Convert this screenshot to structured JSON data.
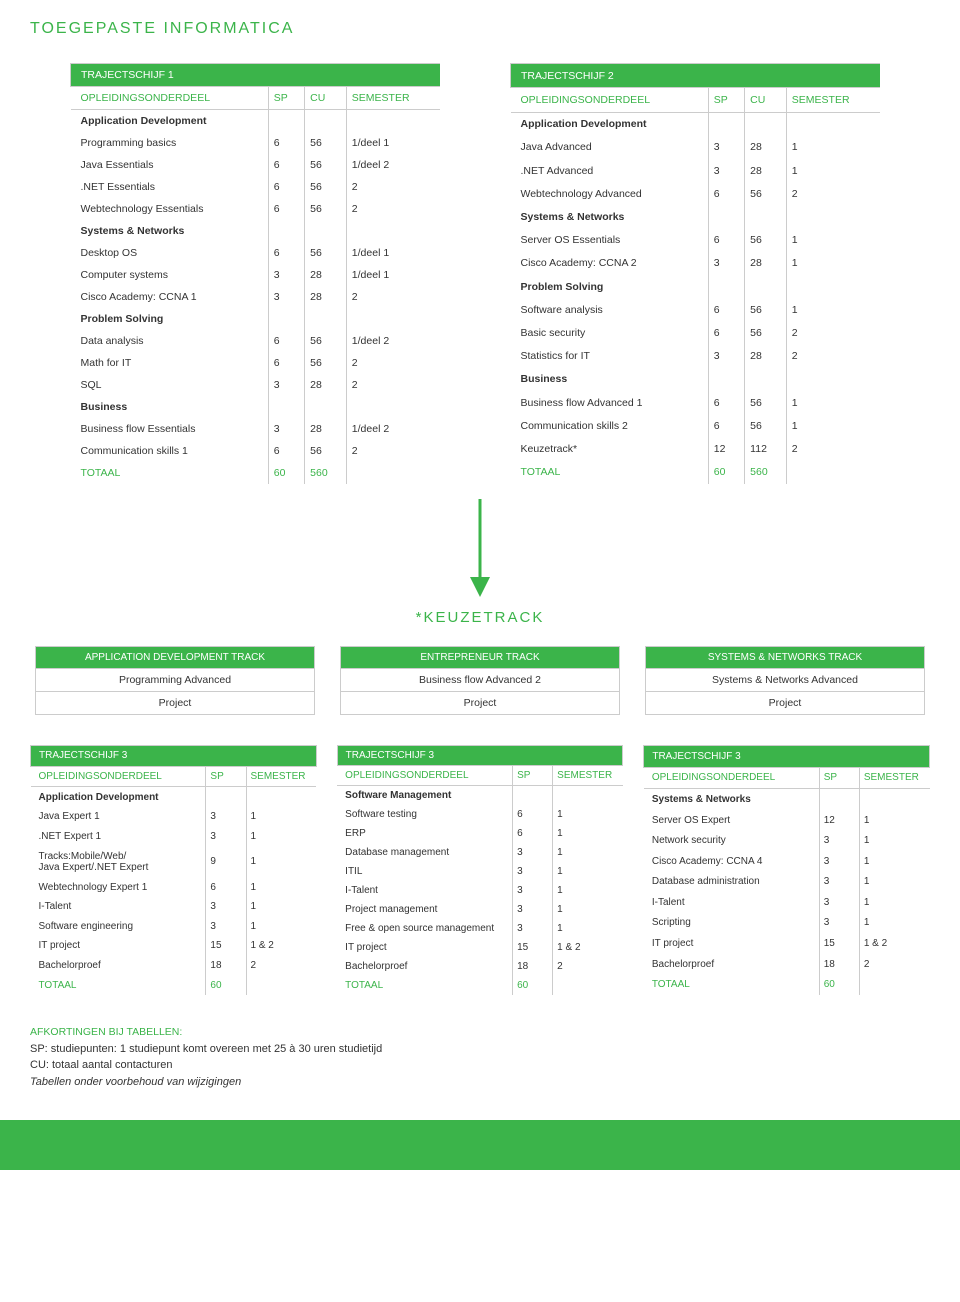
{
  "page_title": "TOEGEPASTE INFORMATICA",
  "colors": {
    "accent": "#3bb44a",
    "border": "#cccccc",
    "text": "#333333",
    "white": "#ffffff"
  },
  "traj1": {
    "title": "TRAJECTSCHIJF 1",
    "headers": {
      "c1": "OPLEIDINGSONDERDEEL",
      "c2": "SP",
      "c3": "CU",
      "c4": "SEMESTER"
    },
    "rows": [
      {
        "type": "section",
        "c1": "Application Development"
      },
      {
        "c1": "Programming basics",
        "c2": "6",
        "c3": "56",
        "c4": "1/deel 1"
      },
      {
        "c1": "Java Essentials",
        "c2": "6",
        "c3": "56",
        "c4": "1/deel 2"
      },
      {
        "c1": ".NET Essentials",
        "c2": "6",
        "c3": "56",
        "c4": "2"
      },
      {
        "c1": "Webtechnology Essentials",
        "c2": "6",
        "c3": "56",
        "c4": "2"
      },
      {
        "type": "section",
        "c1": "Systems & Networks"
      },
      {
        "c1": "Desktop OS",
        "c2": "6",
        "c3": "56",
        "c4": "1/deel 1"
      },
      {
        "c1": "Computer systems",
        "c2": "3",
        "c3": "28",
        "c4": "1/deel 1"
      },
      {
        "c1": "Cisco Academy: CCNA 1",
        "c2": "3",
        "c3": "28",
        "c4": "2"
      },
      {
        "type": "section",
        "c1": "Problem Solving"
      },
      {
        "c1": "Data analysis",
        "c2": "6",
        "c3": "56",
        "c4": "1/deel 2"
      },
      {
        "c1": "Math for IT",
        "c2": "6",
        "c3": "56",
        "c4": "2"
      },
      {
        "c1": "SQL",
        "c2": "3",
        "c3": "28",
        "c4": "2"
      },
      {
        "type": "section",
        "c1": "Business"
      },
      {
        "c1": "Business flow Essentials",
        "c2": "3",
        "c3": "28",
        "c4": "1/deel 2"
      },
      {
        "c1": "Communication skills 1",
        "c2": "6",
        "c3": "56",
        "c4": "2"
      },
      {
        "type": "total",
        "c1": "TOTAAL",
        "c2": "60",
        "c3": "560",
        "c4": ""
      }
    ]
  },
  "traj2": {
    "title": "TRAJECTSCHIJF 2",
    "headers": {
      "c1": "OPLEIDINGSONDERDEEL",
      "c2": "SP",
      "c3": "CU",
      "c4": "SEMESTER"
    },
    "rows": [
      {
        "type": "section",
        "c1": "Application Development"
      },
      {
        "c1": "Java Advanced",
        "c2": "3",
        "c3": "28",
        "c4": "1"
      },
      {
        "c1": ".NET Advanced",
        "c2": "3",
        "c3": "28",
        "c4": "1"
      },
      {
        "c1": "Webtechnology Advanced",
        "c2": "6",
        "c3": "56",
        "c4": "2"
      },
      {
        "type": "section",
        "c1": "Systems & Networks"
      },
      {
        "c1": "Server OS Essentials",
        "c2": "6",
        "c3": "56",
        "c4": "1"
      },
      {
        "c1": "Cisco Academy: CCNA 2",
        "c2": "3",
        "c3": "28",
        "c4": "1"
      },
      {
        "type": "section",
        "c1": "Problem Solving"
      },
      {
        "c1": "Software analysis",
        "c2": "6",
        "c3": "56",
        "c4": "1"
      },
      {
        "c1": "Basic security",
        "c2": "6",
        "c3": "56",
        "c4": "2"
      },
      {
        "c1": "Statistics for IT",
        "c2": "3",
        "c3": "28",
        "c4": "2"
      },
      {
        "type": "section",
        "c1": "Business"
      },
      {
        "c1": "Business flow Advanced 1",
        "c2": "6",
        "c3": "56",
        "c4": "1"
      },
      {
        "c1": "Communication skills 2",
        "c2": "6",
        "c3": "56",
        "c4": "1"
      },
      {
        "c1": "Keuzetrack*",
        "c2": "12",
        "c3": "112",
        "c4": "2"
      },
      {
        "type": "total",
        "c1": "TOTAAL",
        "c2": "60",
        "c3": "560",
        "c4": ""
      }
    ]
  },
  "keuzetrack_title": "*KEUZETRACK",
  "tracks": [
    {
      "header": "APPLICATION DEVELOPMENT TRACK",
      "r1": "Programming Advanced",
      "r2": "Project"
    },
    {
      "header": "ENTREPRENEUR TRACK",
      "r1": "Business flow Advanced 2",
      "r2": "Project"
    },
    {
      "header": "SYSTEMS & NETWORKS TRACK",
      "r1": "Systems & Networks Advanced",
      "r2": "Project"
    }
  ],
  "traj3": [
    {
      "title": "TRAJECTSCHIJF 3",
      "headers": {
        "c1": "OPLEIDINGSONDERDEEL",
        "c2": "SP",
        "c3": "SEMESTER"
      },
      "rows": [
        {
          "type": "section",
          "c1": "Application Development"
        },
        {
          "c1": "Java Expert 1",
          "c2": "3",
          "c3": "1"
        },
        {
          "c1": ".NET Expert 1",
          "c2": "3",
          "c3": "1"
        },
        {
          "c1": "Tracks:Mobile/Web/\nJava Expert/.NET Expert",
          "c2": "9",
          "c3": "1"
        },
        {
          "c1": "Webtechnology Expert 1",
          "c2": "6",
          "c3": "1"
        },
        {
          "c1": "I-Talent",
          "c2": "3",
          "c3": "1"
        },
        {
          "c1": "Software engineering",
          "c2": "3",
          "c3": "1"
        },
        {
          "c1": "IT project",
          "c2": "15",
          "c3": "1 & 2"
        },
        {
          "c1": "Bachelorproef",
          "c2": "18",
          "c3": "2"
        },
        {
          "type": "total",
          "c1": "TOTAAL",
          "c2": "60",
          "c3": ""
        }
      ]
    },
    {
      "title": "TRAJECTSCHIJF 3",
      "headers": {
        "c1": "OPLEIDINGSONDERDEEL",
        "c2": "SP",
        "c3": "SEMESTER"
      },
      "rows": [
        {
          "type": "section",
          "c1": "Software Management"
        },
        {
          "c1": "Software testing",
          "c2": "6",
          "c3": "1"
        },
        {
          "c1": "ERP",
          "c2": "6",
          "c3": "1"
        },
        {
          "c1": "Database management",
          "c2": "3",
          "c3": "1"
        },
        {
          "c1": "ITIL",
          "c2": "3",
          "c3": "1"
        },
        {
          "c1": "I-Talent",
          "c2": "3",
          "c3": "1"
        },
        {
          "c1": "Project management",
          "c2": "3",
          "c3": "1"
        },
        {
          "c1": "Free & open source management",
          "c2": "3",
          "c3": "1"
        },
        {
          "c1": "IT project",
          "c2": "15",
          "c3": "1 & 2"
        },
        {
          "c1": "Bachelorproef",
          "c2": "18",
          "c3": "2"
        },
        {
          "type": "total",
          "c1": "TOTAAL",
          "c2": "60",
          "c3": ""
        }
      ]
    },
    {
      "title": "TRAJECTSCHIJF 3",
      "headers": {
        "c1": "OPLEIDINGSONDERDEEL",
        "c2": "SP",
        "c3": "SEMESTER"
      },
      "rows": [
        {
          "type": "section",
          "c1": "Systems & Networks"
        },
        {
          "c1": "Server OS Expert",
          "c2": "12",
          "c3": "1"
        },
        {
          "c1": "Network security",
          "c2": "3",
          "c3": "1"
        },
        {
          "c1": "Cisco Academy: CCNA 4",
          "c2": "3",
          "c3": "1"
        },
        {
          "c1": "Database administration",
          "c2": "3",
          "c3": "1"
        },
        {
          "c1": "I-Talent",
          "c2": "3",
          "c3": "1"
        },
        {
          "c1": "Scripting",
          "c2": "3",
          "c3": "1"
        },
        {
          "c1": "IT project",
          "c2": "15",
          "c3": "1 & 2"
        },
        {
          "c1": "Bachelorproef",
          "c2": "18",
          "c3": "2"
        },
        {
          "type": "total",
          "c1": "TOTAAL",
          "c2": "60",
          "c3": ""
        }
      ]
    }
  ],
  "footer": {
    "heading": "AFKORTINGEN BIJ TABELLEN:",
    "l1": "SP: studiepunten: 1 studiepunt komt overeen met 25 à 30 uren studietijd",
    "l2": "CU: totaal aantal contacturen",
    "l3": "Tabellen onder voorbehoud van wijzigingen"
  }
}
